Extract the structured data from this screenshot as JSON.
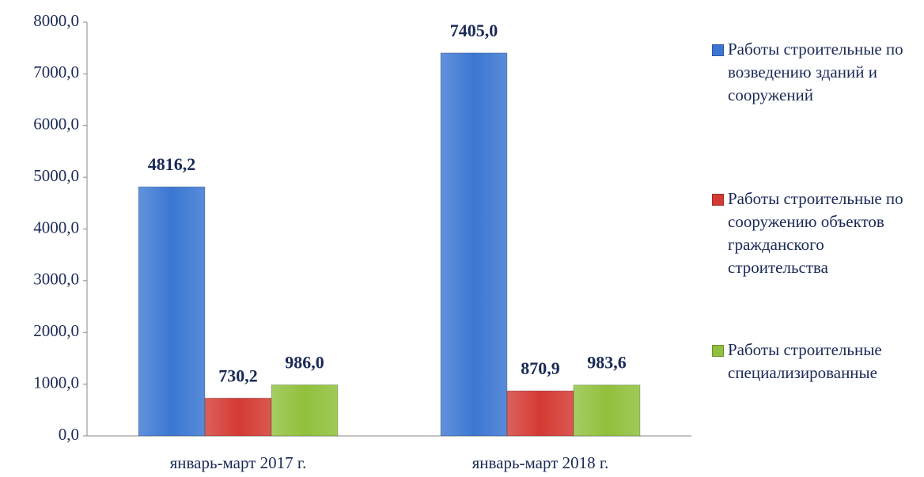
{
  "chart_data": {
    "type": "bar",
    "categories": [
      "январь-март 2017 г.",
      "январь-март 2018 г."
    ],
    "series": [
      {
        "name": "Работы строительные по возведению зданий и сооружений",
        "color": "#3b77d2",
        "values": [
          4816.2,
          7405.0
        ],
        "value_labels": [
          "4816,2",
          "7405,0"
        ]
      },
      {
        "name": "Работы строительные по сооружению объектов гражданского строительства",
        "color": "#d43a33",
        "values": [
          730.2,
          870.9
        ],
        "value_labels": [
          "730,2",
          "870,9"
        ]
      },
      {
        "name": "Работы строительные специализированные",
        "color": "#90c03c",
        "values": [
          986.0,
          983.6
        ],
        "value_labels": [
          "986,0",
          "983,6"
        ]
      }
    ],
    "ylim": [
      0,
      8000
    ],
    "yticks": [
      {
        "value": 0,
        "label": "0,0"
      },
      {
        "value": 1000,
        "label": "1000,0"
      },
      {
        "value": 2000,
        "label": "2000,0"
      },
      {
        "value": 3000,
        "label": "3000,0"
      },
      {
        "value": 4000,
        "label": "4000,0"
      },
      {
        "value": 5000,
        "label": "5000,0"
      },
      {
        "value": 6000,
        "label": "6000,0"
      },
      {
        "value": 7000,
        "label": "7000,0"
      },
      {
        "value": 8000,
        "label": "8000,0"
      }
    ],
    "grid": false,
    "legend": "right"
  }
}
